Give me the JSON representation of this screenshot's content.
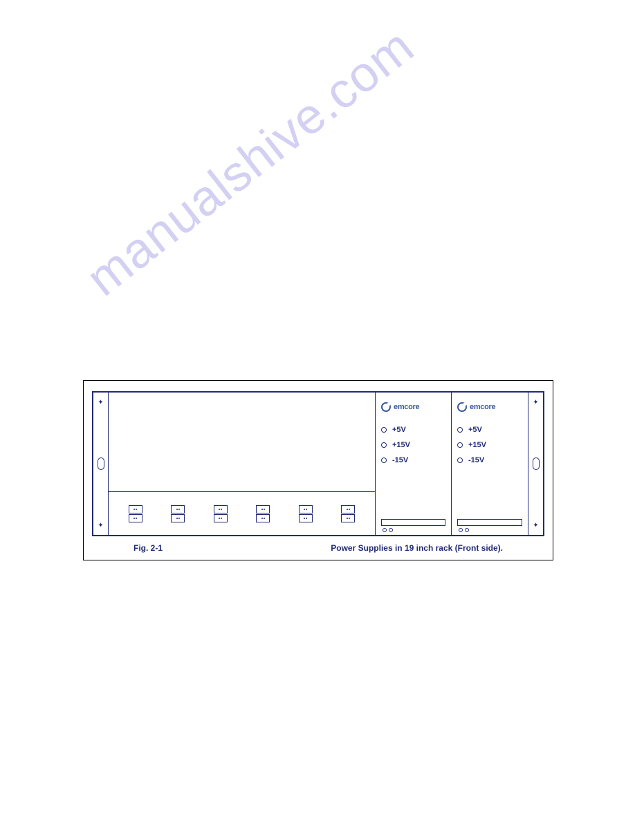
{
  "watermark": "manualshive.com",
  "figure": {
    "label": "Fig. 2-1",
    "caption": "Power Supplies in 19 inch rack (Front side).",
    "border_color": "#202a75",
    "brand_color": "#3a5a9a"
  },
  "logo_text": "emcore",
  "psu_modules": [
    {
      "voltages": [
        {
          "label": "+5V"
        },
        {
          "label": "+15V"
        },
        {
          "label": "-15V"
        }
      ]
    },
    {
      "voltages": [
        {
          "label": "+5V"
        },
        {
          "label": "+15V"
        },
        {
          "label": "-15V"
        }
      ]
    }
  ],
  "port_count": 6
}
